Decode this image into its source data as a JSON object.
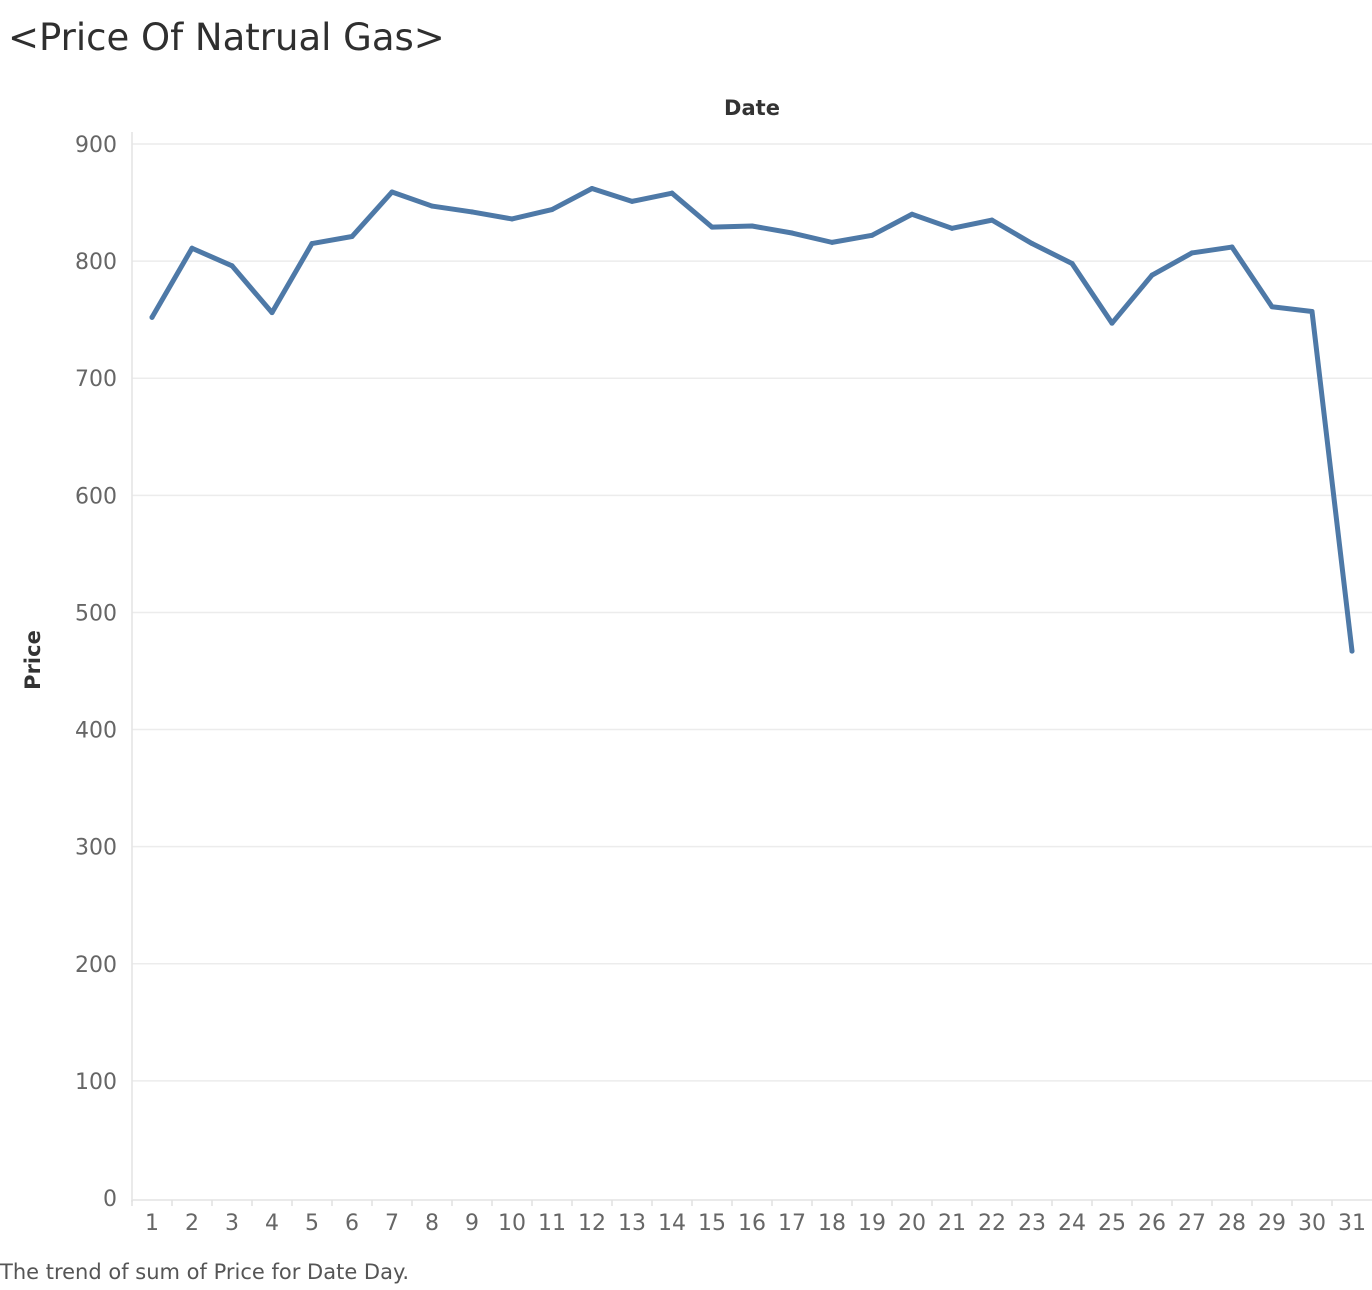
{
  "title": "<Price Of Natrual Gas>",
  "caption": "The trend of sum of Price for Date Day.",
  "chart_data": {
    "type": "line",
    "title": "<Price Of Natrual Gas>",
    "xlabel": "Date",
    "ylabel": "Price",
    "x": [
      "1",
      "2",
      "3",
      "4",
      "5",
      "6",
      "7",
      "8",
      "9",
      "10",
      "11",
      "12",
      "13",
      "14",
      "15",
      "16",
      "17",
      "18",
      "19",
      "20",
      "21",
      "22",
      "23",
      "24",
      "25",
      "26",
      "27",
      "28",
      "29",
      "30",
      "31"
    ],
    "series": [
      {
        "values": [
          752,
          811,
          796,
          756,
          815,
          821,
          859,
          847,
          842,
          836,
          844,
          862,
          851,
          858,
          829,
          830,
          824,
          816,
          822,
          840,
          828,
          835,
          815,
          798,
          747,
          788,
          807,
          812,
          761,
          757,
          467
        ]
      }
    ],
    "yticks": [
      "0",
      "100",
      "200",
      "300",
      "400",
      "500",
      "600",
      "700",
      "800",
      "900"
    ],
    "ylim": [
      0,
      900
    ],
    "grid": true,
    "line_color": "#4e79a7"
  }
}
